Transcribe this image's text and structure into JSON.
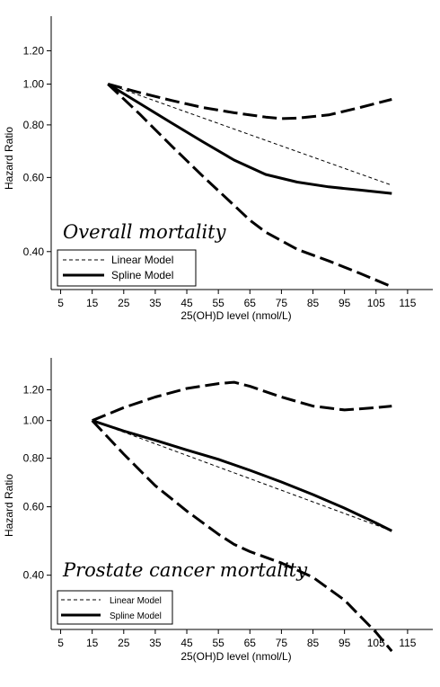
{
  "chart_data": [
    {
      "type": "line",
      "xlabel": "25(OH)D level (nmol/L)",
      "ylabel": "Hazard Ratio",
      "annotation": "Overall mortality",
      "y_scale": "log",
      "xlim": [
        2,
        123
      ],
      "ylim": [
        0.325,
        1.45
      ],
      "x_ticks": [
        5,
        15,
        25,
        35,
        45,
        55,
        65,
        75,
        85,
        95,
        105,
        115
      ],
      "y_ticks": [
        0.4,
        0.6,
        0.8,
        1.0,
        1.2
      ],
      "y_tick_labels": [
        "0.40",
        "0.60",
        "0.80",
        "1.00",
        "1.20"
      ],
      "legend_position": "bottom-left",
      "series": [
        {
          "name": "Linear Model",
          "style": "short-dash",
          "x": [
            20,
            110
          ],
          "y": [
            1.0,
            0.575
          ]
        },
        {
          "name": "Spline Model",
          "style": "solid",
          "x": [
            20,
            30,
            40,
            50,
            60,
            70,
            80,
            90,
            100,
            110
          ],
          "y": [
            1.0,
            0.9,
            0.81,
            0.73,
            0.66,
            0.61,
            0.585,
            0.57,
            0.56,
            0.55
          ]
        },
        {
          "style": "long-dash",
          "x": [
            20,
            30,
            40,
            50,
            60,
            70,
            75,
            80,
            90,
            100,
            110
          ],
          "y": [
            1.0,
            0.955,
            0.915,
            0.88,
            0.855,
            0.835,
            0.828,
            0.83,
            0.845,
            0.88,
            0.92
          ]
        },
        {
          "style": "long-dash",
          "x": [
            20,
            30,
            40,
            50,
            60,
            65,
            70,
            80,
            90,
            100,
            110
          ],
          "y": [
            1.0,
            0.85,
            0.715,
            0.605,
            0.515,
            0.475,
            0.445,
            0.405,
            0.38,
            0.355,
            0.33
          ]
        }
      ]
    },
    {
      "type": "line",
      "xlabel": "25(OH)D level (nmol/L)",
      "ylabel": "Hazard Ratio",
      "annotation": "Prostate cancer mortality",
      "y_scale": "log",
      "xlim": [
        2,
        123
      ],
      "ylim": [
        0.29,
        1.45
      ],
      "x_ticks": [
        5,
        15,
        25,
        35,
        45,
        55,
        65,
        75,
        85,
        95,
        105,
        115
      ],
      "y_ticks": [
        0.4,
        0.6,
        0.8,
        1.0,
        1.2
      ],
      "y_tick_labels": [
        "0.40",
        "0.60",
        "0.80",
        "1.00",
        "1.20"
      ],
      "legend_position": "bottom-left",
      "series": [
        {
          "name": "Linear Model",
          "style": "short-dash",
          "x": [
            15,
            110
          ],
          "y": [
            1.0,
            0.52
          ]
        },
        {
          "name": "Spline Model",
          "style": "solid",
          "x": [
            15,
            25,
            35,
            45,
            55,
            65,
            75,
            85,
            95,
            105,
            110
          ],
          "y": [
            1.0,
            0.94,
            0.89,
            0.84,
            0.795,
            0.745,
            0.695,
            0.645,
            0.595,
            0.545,
            0.52
          ]
        },
        {
          "style": "long-dash",
          "x": [
            15,
            25,
            35,
            45,
            55,
            60,
            65,
            75,
            85,
            95,
            105,
            110
          ],
          "y": [
            1.0,
            1.08,
            1.15,
            1.21,
            1.245,
            1.255,
            1.225,
            1.15,
            1.09,
            1.065,
            1.08,
            1.09
          ]
        },
        {
          "style": "long-dash",
          "x": [
            15,
            25,
            35,
            45,
            55,
            60,
            65,
            75,
            85,
            95,
            105,
            110
          ],
          "y": [
            1.0,
            0.82,
            0.68,
            0.585,
            0.51,
            0.48,
            0.46,
            0.43,
            0.395,
            0.345,
            0.285,
            0.255
          ]
        }
      ]
    }
  ]
}
